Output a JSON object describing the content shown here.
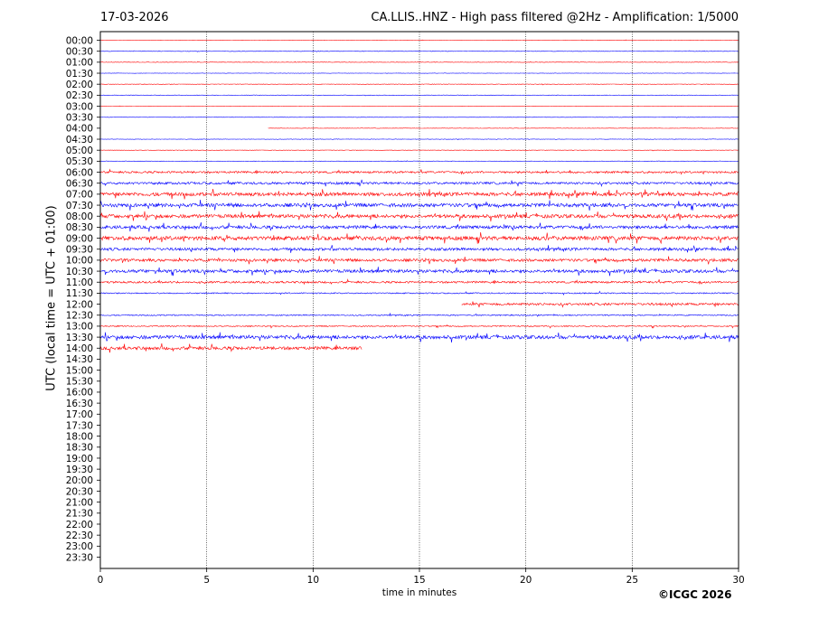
{
  "header": {
    "date": "17-03-2026",
    "title": "CA.LLIS..HNZ - High pass filtered @2Hz - Amplification: 1/5000"
  },
  "footer": {
    "copyright": "©ICGC 2026"
  },
  "chart_data": {
    "type": "line",
    "subtype": "helicorder",
    "title": "CA.LLIS..HNZ - High pass filtered @2Hz - Amplification: 1/5000",
    "xlabel": "time in minutes",
    "ylabel": "UTC (local time = UTC + 01:00)",
    "xlim": [
      0,
      30
    ],
    "xticks": [
      0,
      5,
      10,
      15,
      20,
      25,
      30
    ],
    "grid_x": true,
    "grid_style": "dotted",
    "trace_colors": [
      "#ff0000",
      "#0000ff"
    ],
    "rows": [
      {
        "label": "00:00",
        "color": "#ff0000",
        "start": 0,
        "end": 30,
        "amplitude": 0.05
      },
      {
        "label": "00:30",
        "color": "#0000ff",
        "start": 0,
        "end": 30,
        "amplitude": 0.06
      },
      {
        "label": "01:00",
        "color": "#ff0000",
        "start": 0,
        "end": 30,
        "amplitude": 0.06
      },
      {
        "label": "01:30",
        "color": "#0000ff",
        "start": 0,
        "end": 30,
        "amplitude": 0.05
      },
      {
        "label": "02:00",
        "color": "#ff0000",
        "start": 0,
        "end": 30,
        "amplitude": 0.06
      },
      {
        "label": "02:30",
        "color": "#0000ff",
        "start": 0,
        "end": 30,
        "amplitude": 0.06
      },
      {
        "label": "03:00",
        "color": "#ff0000",
        "start": 0,
        "end": 30,
        "amplitude": 0.05
      },
      {
        "label": "03:30",
        "color": "#0000ff",
        "start": 0,
        "end": 30,
        "amplitude": 0.05
      },
      {
        "label": "04:00",
        "color": "#ff0000",
        "start": 7.9,
        "end": 30,
        "amplitude": 0.05
      },
      {
        "label": "04:30",
        "color": "#0000ff",
        "start": 0,
        "end": 30,
        "amplitude": 0.06
      },
      {
        "label": "05:00",
        "color": "#ff0000",
        "start": 0,
        "end": 30,
        "amplitude": 0.06
      },
      {
        "label": "05:30",
        "color": "#0000ff",
        "start": 0,
        "end": 30,
        "amplitude": 0.06
      },
      {
        "label": "06:00",
        "color": "#ff0000",
        "start": 0,
        "end": 30,
        "amplitude": 0.25
      },
      {
        "label": "06:30",
        "color": "#0000ff",
        "start": 0,
        "end": 30,
        "amplitude": 0.3
      },
      {
        "label": "07:00",
        "color": "#ff0000",
        "start": 0,
        "end": 30,
        "amplitude": 0.45
      },
      {
        "label": "07:30",
        "color": "#0000ff",
        "start": 0,
        "end": 30,
        "amplitude": 0.45
      },
      {
        "label": "08:00",
        "color": "#ff0000",
        "start": 0,
        "end": 30,
        "amplitude": 0.45
      },
      {
        "label": "08:30",
        "color": "#0000ff",
        "start": 0,
        "end": 30,
        "amplitude": 0.4
      },
      {
        "label": "09:00",
        "color": "#ff0000",
        "start": 0,
        "end": 30,
        "amplitude": 0.5
      },
      {
        "label": "09:30",
        "color": "#0000ff",
        "start": 0,
        "end": 30,
        "amplitude": 0.35
      },
      {
        "label": "10:00",
        "color": "#ff0000",
        "start": 0,
        "end": 30,
        "amplitude": 0.35
      },
      {
        "label": "10:30",
        "color": "#0000ff",
        "start": 0,
        "end": 30,
        "amplitude": 0.4
      },
      {
        "label": "11:00",
        "color": "#ff0000",
        "start": 0,
        "end": 30,
        "amplitude": 0.25
      },
      {
        "label": "11:30",
        "color": "#0000ff",
        "start": 0,
        "end": 30,
        "amplitude": 0.15
      },
      {
        "label": "12:00",
        "color": "#ff0000",
        "start": 17,
        "end": 30,
        "amplitude": 0.3
      },
      {
        "label": "12:30",
        "color": "#0000ff",
        "start": 0,
        "end": 30,
        "amplitude": 0.15
      },
      {
        "label": "13:00",
        "color": "#ff0000",
        "start": 0,
        "end": 30,
        "amplitude": 0.15
      },
      {
        "label": "13:30",
        "color": "#0000ff",
        "start": 0,
        "end": 30,
        "amplitude": 0.45
      },
      {
        "label": "14:00",
        "color": "#ff0000",
        "start": 0,
        "end": 12.3,
        "amplitude": 0.4
      },
      {
        "label": "14:30"
      },
      {
        "label": "15:00"
      },
      {
        "label": "15:30"
      },
      {
        "label": "16:00"
      },
      {
        "label": "16:30"
      },
      {
        "label": "17:00"
      },
      {
        "label": "17:30"
      },
      {
        "label": "18:00"
      },
      {
        "label": "18:30"
      },
      {
        "label": "19:00"
      },
      {
        "label": "19:30"
      },
      {
        "label": "20:00"
      },
      {
        "label": "20:30"
      },
      {
        "label": "21:00"
      },
      {
        "label": "21:30"
      },
      {
        "label": "22:00"
      },
      {
        "label": "22:30"
      },
      {
        "label": "23:00"
      },
      {
        "label": "23:30"
      }
    ]
  }
}
